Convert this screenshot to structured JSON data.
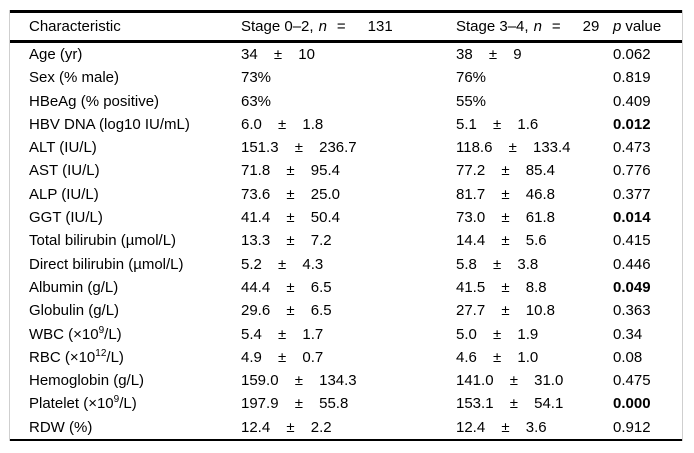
{
  "colors": {
    "background": "#ffffff",
    "text": "#000000",
    "rule": "#000000",
    "side_rule": "#cfcfcf"
  },
  "table": {
    "header": {
      "characteristic": "Characteristic",
      "group1": {
        "stage": "Stage 0–2,",
        "n": "n",
        "eq": "=",
        "count": "131"
      },
      "group2": {
        "stage": "Stage 3–4,",
        "n": "n",
        "eq": "=",
        "count": "29"
      },
      "pvalue": {
        "p": "p",
        "label": "value"
      }
    },
    "rows": [
      {
        "label": "Age (yr)",
        "g1": "34 ± 10",
        "g2": "38 ± 9",
        "p": "0.062",
        "bold": false
      },
      {
        "label": "Sex (% male)",
        "g1": "73%",
        "g2": "76%",
        "p": "0.819",
        "bold": false
      },
      {
        "label": "HBeAg (% positive)",
        "g1": "63%",
        "g2": "55%",
        "p": "0.409",
        "bold": false
      },
      {
        "label": "HBV DNA (log10 IU/mL)",
        "g1": "6.0 ± 1.8",
        "g2": "5.1 ± 1.6",
        "p": "0.012",
        "bold": true
      },
      {
        "label": "ALT (IU/L)",
        "g1": "151.3 ± 236.7",
        "g2": "118.6 ± 133.4",
        "p": "0.473",
        "bold": false
      },
      {
        "label": "AST (IU/L)",
        "g1": "71.8 ± 95.4",
        "g2": "77.2 ± 85.4",
        "p": "0.776",
        "bold": false
      },
      {
        "label": "ALP (IU/L)",
        "g1": "73.6 ± 25.0",
        "g2": "81.7 ± 46.8",
        "p": "0.377",
        "bold": false
      },
      {
        "label": "GGT (IU/L)",
        "g1": "41.4 ± 50.4",
        "g2": "73.0 ± 61.8",
        "p": "0.014",
        "bold": true
      },
      {
        "label": "Total bilirubin (µmol/L)",
        "g1": "13.3 ± 7.2",
        "g2": "14.4 ± 5.6",
        "p": "0.415",
        "bold": false
      },
      {
        "label": "Direct bilirubin (µmol/L)",
        "g1": "5.2 ± 4.3",
        "g2": "5.8 ± 3.8",
        "p": "0.446",
        "bold": false
      },
      {
        "label": "Albumin (g/L)",
        "g1": "44.4 ± 6.5",
        "g2": "41.5 ± 8.8",
        "p": "0.049",
        "bold": true
      },
      {
        "label": "Globulin (g/L)",
        "g1": "29.6 ± 6.5",
        "g2": "27.7 ± 10.8",
        "p": "0.363",
        "bold": false
      },
      {
        "label": "WBC (×10",
        "sup": "9",
        "label_end": "/L)",
        "g1": "5.4 ± 1.7",
        "g2": "5.0 ± 1.9",
        "p": "0.34",
        "bold": false
      },
      {
        "label": "RBC (×10",
        "sup": "12",
        "label_end": "/L)",
        "g1": "4.9 ± 0.7",
        "g2": "4.6 ± 1.0",
        "p": "0.08",
        "bold": false
      },
      {
        "label": "Hemoglobin (g/L)",
        "g1": "159.0 ± 134.3",
        "g2": "141.0 ± 31.0",
        "p": "0.475",
        "bold": false
      },
      {
        "label": "Platelet (×10",
        "sup": "9",
        "label_end": "/L)",
        "g1": "197.9 ± 55.8",
        "g2": "153.1 ± 54.1",
        "p": "0.000",
        "bold": true
      },
      {
        "label": "RDW (%)",
        "g1": "12.4 ± 2.2",
        "g2": "12.4 ± 3.6",
        "p": "0.912",
        "bold": false
      }
    ]
  }
}
